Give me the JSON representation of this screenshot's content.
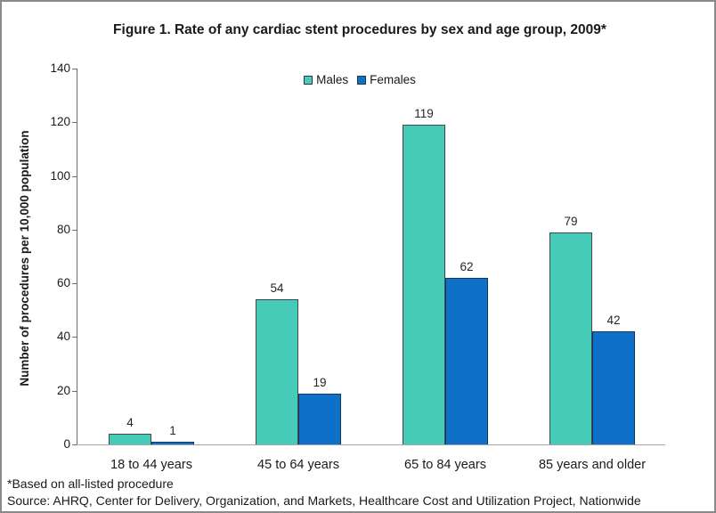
{
  "figure": {
    "footnote": "*Based on all-listed procedure",
    "source": "Source: AHRQ, Center for Delivery, Organization, and Markets, Healthcare Cost and Utilization Project, Nationwide"
  },
  "colors": {
    "males_fill": "#45CBB7",
    "males_border": "#3d4a52",
    "females_fill": "#0E70C8",
    "females_border": "#17375d",
    "axis_line": "#6e6e6e",
    "baseline": "#a6a6a6",
    "frame": "#8a8a8a"
  },
  "chart_data": {
    "type": "bar",
    "title": "Figure 1. Rate of any cardiac stent procedures by sex and age group, 2009*",
    "categories": [
      "18 to 44 years",
      "45 to 64 years",
      "65 to 84 years",
      "85 years and older"
    ],
    "series": [
      {
        "name": "Males",
        "values": [
          4,
          54,
          119,
          79
        ],
        "color": "#45CBB7",
        "border": "#3d4a52"
      },
      {
        "name": "Females",
        "values": [
          1,
          19,
          62,
          42
        ],
        "color": "#0E70C8",
        "border": "#17375d"
      }
    ],
    "xlabel": "",
    "ylabel": "Number of procedures per 10,000 population",
    "ylim": [
      0,
      140
    ],
    "ytick_step": 20,
    "grid": false,
    "legend_position": "top-center",
    "data_labels": true
  }
}
